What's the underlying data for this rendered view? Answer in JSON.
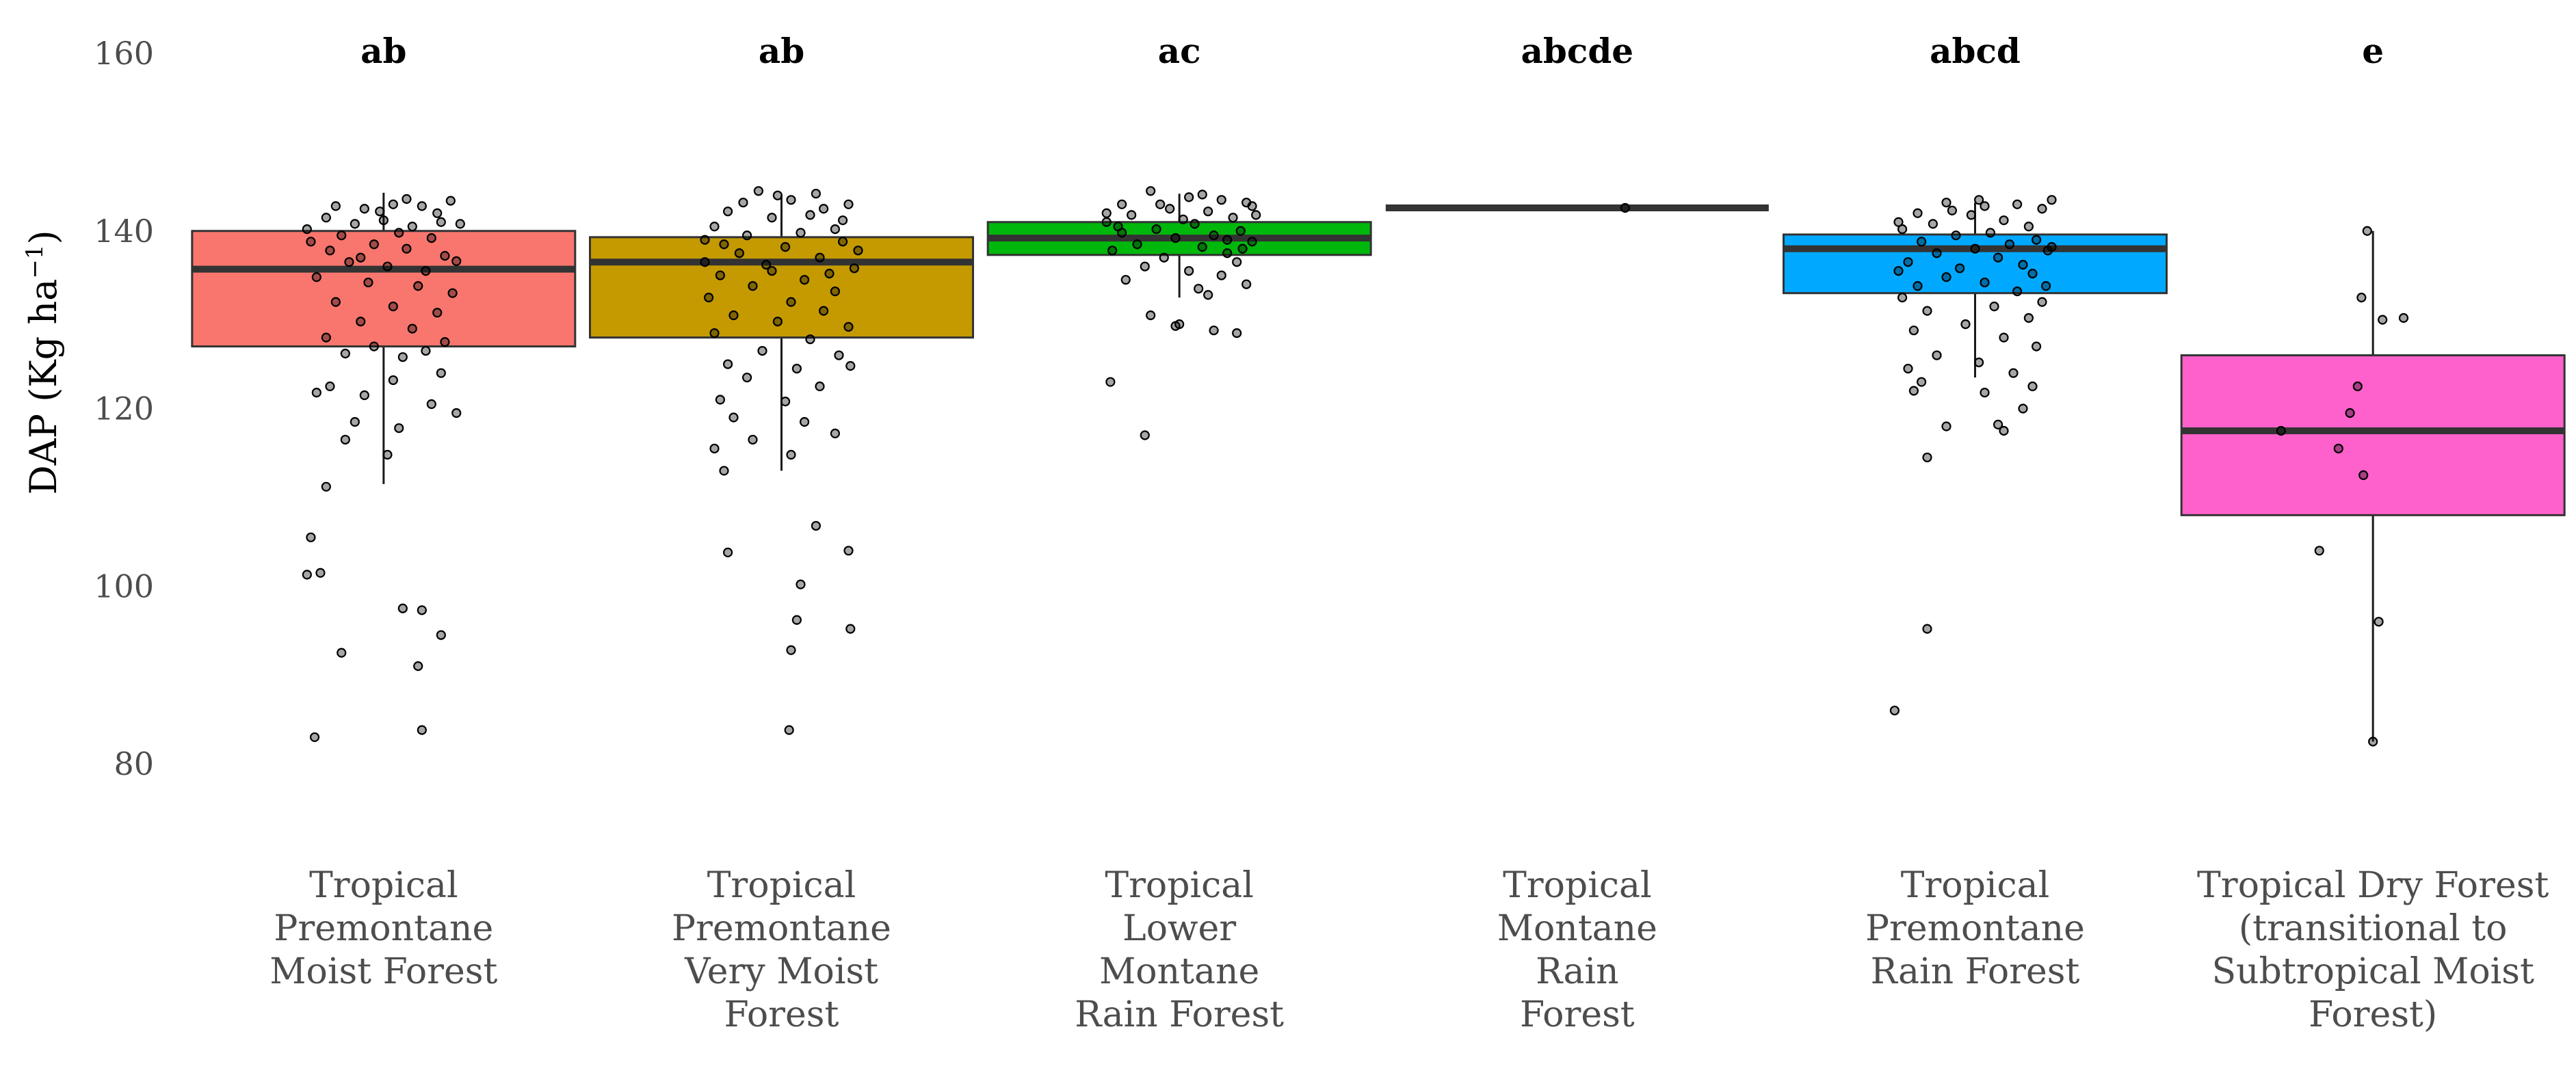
{
  "chart_data": {
    "type": "box",
    "ylabel": "DAP (Kg ha",
    "ylabel_superscript": "−1",
    "ylabel_close": ")",
    "ylim": [
      72,
      162
    ],
    "yticks": [
      80,
      100,
      120,
      140,
      160
    ],
    "grid": false,
    "legend": "none",
    "categories": [
      {
        "lines": [
          "Tropical",
          "Premontane",
          "Moist Forest"
        ],
        "letter": "ab",
        "color": "#F8766D",
        "box": {
          "lower_whisker": 111.5,
          "q1": 127,
          "median": 135.7,
          "q3": 140,
          "upper_whisker": 144.3
        },
        "points": [
          [
            -0.25,
            142.8
          ],
          [
            -0.1,
            142.5
          ],
          [
            0.05,
            143
          ],
          [
            0.2,
            142.8
          ],
          [
            0.35,
            143.4
          ],
          [
            -0.3,
            141.5
          ],
          [
            -0.15,
            140.8
          ],
          [
            0.0,
            141.2
          ],
          [
            0.15,
            140.5
          ],
          [
            0.3,
            141
          ],
          [
            -0.22,
            139.5
          ],
          [
            0.08,
            139.8
          ],
          [
            0.25,
            139.2
          ],
          [
            -0.05,
            138.5
          ],
          [
            -0.28,
            137.8
          ],
          [
            0.12,
            138
          ],
          [
            0.32,
            137.2
          ],
          [
            -0.18,
            136.5
          ],
          [
            0.02,
            136
          ],
          [
            0.22,
            135.5
          ],
          [
            -0.35,
            134.8
          ],
          [
            -0.08,
            134.2
          ],
          [
            0.18,
            133.8
          ],
          [
            0.36,
            133
          ],
          [
            -0.25,
            132
          ],
          [
            0.05,
            131.5
          ],
          [
            0.28,
            130.8
          ],
          [
            -0.12,
            129.8
          ],
          [
            0.15,
            129
          ],
          [
            -0.3,
            128
          ],
          [
            0.32,
            127.5
          ],
          [
            -0.05,
            127
          ],
          [
            0.22,
            126.5
          ],
          [
            -0.2,
            126.2
          ],
          [
            0.1,
            125.8
          ],
          [
            0.3,
            124
          ],
          [
            -0.28,
            122.5
          ],
          [
            0.05,
            123.2
          ],
          [
            -0.1,
            121.5
          ],
          [
            0.25,
            120.5
          ],
          [
            0.38,
            119.5
          ],
          [
            -0.35,
            121.8
          ],
          [
            -0.15,
            118.5
          ],
          [
            0.08,
            117.8
          ],
          [
            -0.2,
            116.5
          ],
          [
            0.02,
            114.8
          ],
          [
            -0.3,
            111.2
          ],
          [
            -0.38,
            105.5
          ],
          [
            -0.4,
            101.3
          ],
          [
            -0.33,
            101.5
          ],
          [
            0.1,
            97.5
          ],
          [
            0.2,
            97.3
          ],
          [
            0.3,
            94.5
          ],
          [
            -0.22,
            92.5
          ],
          [
            0.18,
            91
          ],
          [
            -0.36,
            83
          ],
          [
            0.2,
            83.8
          ],
          [
            0.12,
            143.6
          ],
          [
            -0.02,
            142.2
          ],
          [
            0.28,
            142
          ],
          [
            -0.4,
            140.2
          ],
          [
            0.4,
            140.8
          ],
          [
            -0.12,
            137
          ],
          [
            0.38,
            136.6
          ],
          [
            -0.38,
            138.8
          ]
        ]
      },
      {
        "lines": [
          "Tropical",
          "Premontane",
          "Very Moist",
          "Forest"
        ],
        "letter": "ab",
        "color": "#C49A00",
        "box": {
          "lower_whisker": 113,
          "q1": 128,
          "median": 136.5,
          "q3": 139.3,
          "upper_whisker": 144
        },
        "points": [
          [
            -0.12,
            144.5
          ],
          [
            0.05,
            143.5
          ],
          [
            0.22,
            142.5
          ],
          [
            0.35,
            143
          ],
          [
            -0.28,
            142.2
          ],
          [
            -0.05,
            141.5
          ],
          [
            0.15,
            141.8
          ],
          [
            -0.35,
            140.5
          ],
          [
            0.28,
            140.2
          ],
          [
            -0.18,
            139.5
          ],
          [
            0.1,
            139.8
          ],
          [
            -0.3,
            138.5
          ],
          [
            0.02,
            138.2
          ],
          [
            0.32,
            138.8
          ],
          [
            -0.22,
            137.5
          ],
          [
            0.2,
            137
          ],
          [
            -0.08,
            136.2
          ],
          [
            0.38,
            135.8
          ],
          [
            -0.32,
            135
          ],
          [
            0.12,
            134.5
          ],
          [
            -0.15,
            133.8
          ],
          [
            0.28,
            133.2
          ],
          [
            -0.38,
            132.5
          ],
          [
            0.05,
            132
          ],
          [
            0.22,
            131
          ],
          [
            -0.25,
            130.5
          ],
          [
            -0.02,
            129.8
          ],
          [
            0.35,
            129.2
          ],
          [
            -0.35,
            128.5
          ],
          [
            0.15,
            127.8
          ],
          [
            -0.1,
            126.5
          ],
          [
            0.3,
            126
          ],
          [
            -0.28,
            125
          ],
          [
            0.08,
            124.5
          ],
          [
            0.36,
            124.8
          ],
          [
            -0.18,
            123.5
          ],
          [
            0.2,
            122.5
          ],
          [
            -0.32,
            121
          ],
          [
            0.02,
            120.8
          ],
          [
            -0.25,
            119
          ],
          [
            0.12,
            118.5
          ],
          [
            0.28,
            117.2
          ],
          [
            -0.15,
            116.5
          ],
          [
            -0.35,
            115.5
          ],
          [
            0.05,
            114.8
          ],
          [
            -0.3,
            113
          ],
          [
            -0.28,
            103.8
          ],
          [
            0.18,
            106.8
          ],
          [
            0.35,
            104
          ],
          [
            0.1,
            100.2
          ],
          [
            0.08,
            96.2
          ],
          [
            0.36,
            95.2
          ],
          [
            0.05,
            92.8
          ],
          [
            0.04,
            83.8
          ],
          [
            -0.02,
            144
          ],
          [
            0.18,
            144.2
          ],
          [
            -0.2,
            143.2
          ],
          [
            0.32,
            141.2
          ],
          [
            -0.4,
            139
          ],
          [
            0.4,
            137.8
          ],
          [
            -0.05,
            135.5
          ],
          [
            -0.4,
            136.5
          ],
          [
            0.25,
            135.2
          ]
        ]
      },
      {
        "lines": [
          "Tropical",
          "Lower",
          "Montane",
          "Rain Forest"
        ],
        "letter": "ac",
        "color": "#00B70C",
        "box": {
          "lower_whisker": 132.5,
          "q1": 137.3,
          "median": 139.2,
          "q3": 141,
          "upper_whisker": 144.2
        },
        "points": [
          [
            -0.15,
            144.5
          ],
          [
            0.05,
            143.8
          ],
          [
            0.22,
            143.5
          ],
          [
            -0.3,
            143
          ],
          [
            0.35,
            143.2
          ],
          [
            -0.05,
            142.5
          ],
          [
            0.15,
            142.2
          ],
          [
            -0.25,
            141.8
          ],
          [
            0.28,
            141.5
          ],
          [
            -0.38,
            141
          ],
          [
            0.08,
            140.8
          ],
          [
            -0.12,
            140.2
          ],
          [
            0.32,
            140
          ],
          [
            -0.3,
            139.8
          ],
          [
            0.18,
            139.5
          ],
          [
            -0.02,
            139.2
          ],
          [
            0.38,
            138.8
          ],
          [
            -0.22,
            138.5
          ],
          [
            0.12,
            138.2
          ],
          [
            -0.35,
            137.8
          ],
          [
            0.25,
            137.5
          ],
          [
            -0.08,
            137
          ],
          [
            0.3,
            136.5
          ],
          [
            -0.18,
            136
          ],
          [
            0.05,
            135.5
          ],
          [
            0.22,
            135
          ],
          [
            -0.28,
            134.5
          ],
          [
            0.35,
            134
          ],
          [
            0.1,
            133.5
          ],
          [
            0.15,
            132.8
          ],
          [
            -0.15,
            130.5
          ],
          [
            0.0,
            129.5
          ],
          [
            -0.02,
            129.3
          ],
          [
            0.18,
            128.8
          ],
          [
            0.3,
            128.5
          ],
          [
            -0.36,
            123
          ],
          [
            -0.18,
            117
          ],
          [
            0.38,
            142.8
          ],
          [
            -0.38,
            142
          ],
          [
            0.02,
            141.3
          ],
          [
            0.25,
            139
          ],
          [
            -0.32,
            140.5
          ],
          [
            0.4,
            141.8
          ],
          [
            -0.1,
            143
          ],
          [
            0.12,
            144.1
          ],
          [
            0.33,
            138
          ]
        ]
      },
      {
        "lines": [
          "Tropical",
          "Montane",
          "Rain",
          "Forest"
        ],
        "letter": "abcde",
        "color": "#00C08B",
        "box": {
          "lower_whisker": 142.6,
          "q1": 142.6,
          "median": 142.6,
          "q3": 142.6,
          "upper_whisker": 142.6
        },
        "points": [
          [
            0.25,
            142.6
          ]
        ]
      },
      {
        "lines": [
          "Tropical",
          "Premontane",
          "Rain Forest"
        ],
        "letter": "abcd",
        "color": "#00A9FF",
        "box": {
          "lower_whisker": 123.5,
          "q1": 133,
          "median": 138,
          "q3": 139.6,
          "upper_whisker": 143.2
        },
        "points": [
          [
            -0.15,
            143.2
          ],
          [
            0.05,
            142.8
          ],
          [
            0.22,
            143
          ],
          [
            0.35,
            142.5
          ],
          [
            -0.3,
            142
          ],
          [
            -0.02,
            141.8
          ],
          [
            0.15,
            141.2
          ],
          [
            -0.22,
            140.8
          ],
          [
            0.28,
            140.5
          ],
          [
            -0.38,
            140.2
          ],
          [
            0.08,
            139.8
          ],
          [
            -0.1,
            139.5
          ],
          [
            0.32,
            139
          ],
          [
            -0.28,
            138.8
          ],
          [
            0.18,
            138.5
          ],
          [
            0.0,
            138
          ],
          [
            0.38,
            137.8
          ],
          [
            -0.2,
            137.5
          ],
          [
            0.12,
            137
          ],
          [
            -0.35,
            136.5
          ],
          [
            0.25,
            136.2
          ],
          [
            -0.08,
            135.8
          ],
          [
            0.3,
            135.2
          ],
          [
            -0.15,
            134.8
          ],
          [
            0.05,
            134.2
          ],
          [
            -0.3,
            133.8
          ],
          [
            0.22,
            133.2
          ],
          [
            -0.38,
            132.5
          ],
          [
            0.35,
            132
          ],
          [
            0.1,
            131.5
          ],
          [
            -0.25,
            131
          ],
          [
            0.28,
            130.2
          ],
          [
            -0.05,
            129.5
          ],
          [
            -0.32,
            128.8
          ],
          [
            0.15,
            128
          ],
          [
            0.32,
            127
          ],
          [
            -0.2,
            126
          ],
          [
            0.02,
            125.2
          ],
          [
            -0.35,
            124.5
          ],
          [
            0.2,
            124
          ],
          [
            -0.28,
            123
          ],
          [
            0.3,
            122.5
          ],
          [
            -0.32,
            122
          ],
          [
            0.05,
            121.8
          ],
          [
            0.25,
            120
          ],
          [
            -0.15,
            118
          ],
          [
            0.12,
            118.2
          ],
          [
            0.15,
            117.5
          ],
          [
            -0.25,
            114.5
          ],
          [
            -0.25,
            95.2
          ],
          [
            -0.42,
            86
          ],
          [
            0.4,
            143.5
          ],
          [
            -0.4,
            141
          ],
          [
            0.02,
            143.5
          ],
          [
            -0.12,
            142.3
          ],
          [
            0.4,
            138.2
          ],
          [
            -0.4,
            135.5
          ],
          [
            0.37,
            133.8
          ]
        ]
      },
      {
        "lines": [
          "Tropical Dry Forest",
          "(transitional to",
          "Subtropical Moist",
          "Forest)"
        ],
        "letter": "e",
        "color": "#FF61CC",
        "box": {
          "lower_whisker": 82.5,
          "q1": 108,
          "median": 117.5,
          "q3": 126,
          "upper_whisker": 140
        },
        "points": [
          [
            -0.03,
            140
          ],
          [
            0.05,
            130
          ],
          [
            -0.06,
            132.5
          ],
          [
            0.16,
            130.2
          ],
          [
            -0.08,
            122.5
          ],
          [
            -0.12,
            119.5
          ],
          [
            -0.48,
            117.5
          ],
          [
            -0.18,
            115.5
          ],
          [
            -0.05,
            112.5
          ],
          [
            -0.28,
            104
          ],
          [
            0.03,
            96
          ],
          [
            0.0,
            82.5
          ]
        ]
      }
    ]
  }
}
